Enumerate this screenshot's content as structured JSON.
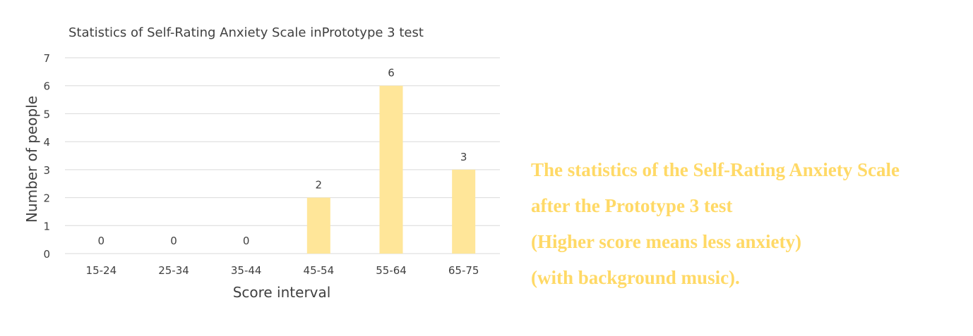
{
  "chart_data": {
    "type": "bar",
    "title": "Statistics of Self-Rating Anxiety Scale inPrototype 3 test",
    "xlabel": "Score interval",
    "ylabel": "Number of people",
    "categories": [
      "15-24",
      "25-34",
      "35-44",
      "45-54",
      "55-64",
      "65-75"
    ],
    "values": [
      0,
      0,
      0,
      2,
      6,
      3
    ],
    "ylim": [
      0,
      7
    ],
    "yticks": [
      0,
      1,
      2,
      3,
      4,
      5,
      6,
      7
    ],
    "data_labels": true,
    "grid": true,
    "legend": "none",
    "bar_color": "#ffe699",
    "grid_color": "#d9d9d9",
    "text_color": "#404040"
  },
  "caption": {
    "lines": [
      "The statistics of the Self-Rating Anxiety Scale",
      "after the Prototype 3 test",
      "(Higher score means less anxiety)",
      "(with background music)."
    ],
    "color": "#ffd966"
  }
}
